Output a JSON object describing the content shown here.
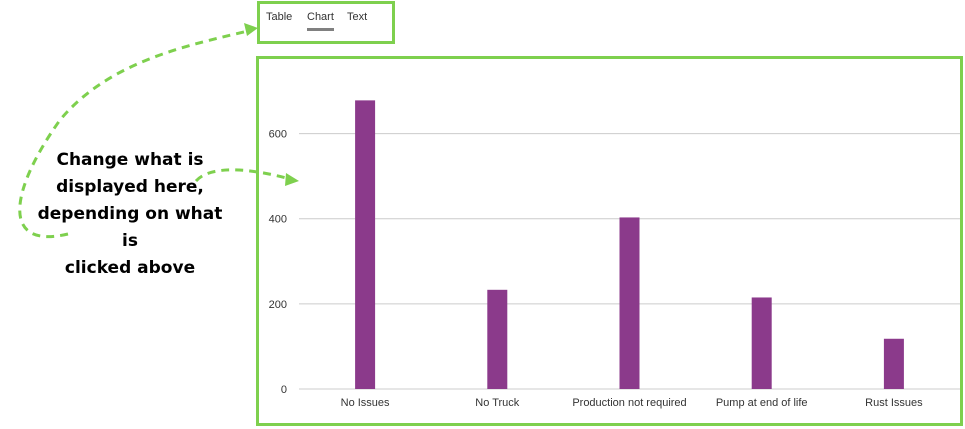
{
  "tabs": [
    {
      "label": "Table",
      "active": false
    },
    {
      "label": "Chart",
      "active": true
    },
    {
      "label": "Text",
      "active": false
    }
  ],
  "annotation": {
    "lines": [
      "Change what is",
      "displayed here,",
      "depending on what is",
      "clicked above"
    ]
  },
  "colors": {
    "highlight_border": "#7ed04e",
    "bar": "#8b3a8b",
    "gridline": "#cccccc",
    "tab_underline": "#808080"
  },
  "chart_data": {
    "type": "bar",
    "categories": [
      "No Issues",
      "No Truck",
      "Production not required",
      "Pump at end of life",
      "Rust Issues"
    ],
    "values": [
      678,
      233,
      403,
      215,
      118
    ],
    "y_ticks": [
      0,
      200,
      400,
      600
    ],
    "ylim": [
      0,
      700
    ],
    "grid": true
  }
}
